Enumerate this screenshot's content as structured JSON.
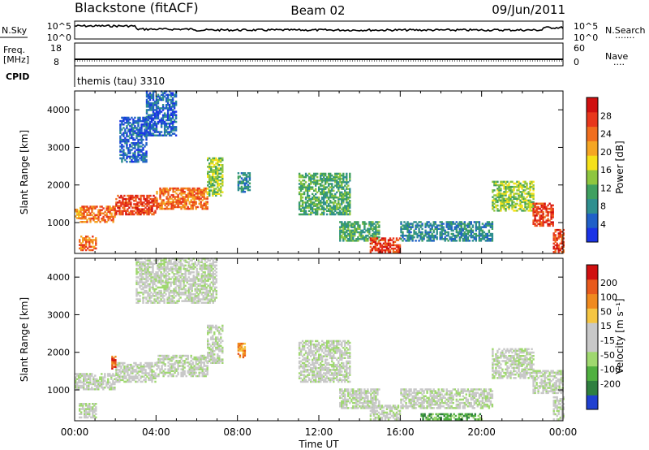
{
  "header": {
    "station": "Blackstone (fitACF)",
    "beam": "Beam 02",
    "date": "09/Jun/2011"
  },
  "noise_panel": {
    "left_label": "N.Sky",
    "right_label": "N.Search",
    "right_dots": ".......",
    "left_ticks": [
      "10^5",
      "10^0"
    ],
    "right_ticks": [
      "10^5",
      "10^0"
    ]
  },
  "freq_panel": {
    "left_label_1": "Freq.",
    "left_label_2": "[MHz]",
    "left_ticks": [
      "18",
      "8"
    ],
    "right_label": "Nave",
    "right_dots": "....",
    "right_ticks": [
      "60",
      "0"
    ]
  },
  "cpid": {
    "label": "CPID",
    "value": "themis (tau) 3310"
  },
  "colors": {
    "power_scale": [
      "#1a33e6",
      "#2060c8",
      "#2f8f8f",
      "#3fa060",
      "#8ec63f",
      "#f5e11a",
      "#f5a623",
      "#f06e1e",
      "#e8371c",
      "#d01010"
    ],
    "velocity_scale": [
      "#2040d0",
      "#2f7f3f",
      "#50b040",
      "#9fd86f",
      "#c8c8c8",
      "#c8c8c8",
      "#f5c542",
      "#f08a1e",
      "#e85a1c",
      "#d01010"
    ]
  },
  "chart_data": [
    {
      "type": "heatmap",
      "name": "power",
      "ylabel": "Slant Range [km]",
      "y_ticks": [
        "1000",
        "2000",
        "3000",
        "4000"
      ],
      "y_tick_values": [
        1000,
        2000,
        3000,
        4000
      ],
      "ylim": [
        180,
        4500
      ],
      "xlim": [
        0,
        24
      ],
      "colorbar_label": "Power [dB]",
      "colorbar_ticks": [
        "4",
        "8",
        "12",
        "16",
        "20",
        "24",
        "28"
      ],
      "colorbar_range": [
        0,
        32
      ],
      "bands": [
        {
          "t0": 0.0,
          "t1": 0.25,
          "r0": 1100,
          "r1": 1400,
          "lvl": 6
        },
        {
          "t0": 0.25,
          "t1": 2.0,
          "r0": 1000,
          "r1": 1450,
          "lvl": 7
        },
        {
          "t0": 2.0,
          "t1": 4.0,
          "r0": 1200,
          "r1": 1700,
          "lvl": 8
        },
        {
          "t0": 4.0,
          "t1": 6.5,
          "r0": 1350,
          "r1": 1900,
          "lvl": 7
        },
        {
          "t0": 6.5,
          "t1": 7.3,
          "r0": 1700,
          "r1": 2700,
          "lvl": 4
        },
        {
          "t0": 0.2,
          "t1": 1.0,
          "r0": 250,
          "r1": 650,
          "lvl": 7
        },
        {
          "t0": 2.2,
          "t1": 3.5,
          "r0": 2600,
          "r1": 3800,
          "lvl": 1
        },
        {
          "t0": 3.5,
          "t1": 5.0,
          "r0": 3300,
          "r1": 4500,
          "lvl": 1
        },
        {
          "t0": 8.0,
          "t1": 8.6,
          "r0": 1800,
          "r1": 2300,
          "lvl": 2
        },
        {
          "t0": 11.0,
          "t1": 13.5,
          "r0": 1200,
          "r1": 2300,
          "lvl": 3
        },
        {
          "t0": 13.0,
          "t1": 15.0,
          "r0": 500,
          "r1": 1000,
          "lvl": 3
        },
        {
          "t0": 14.5,
          "t1": 16.0,
          "r0": 200,
          "r1": 600,
          "lvl": 8
        },
        {
          "t0": 16.0,
          "t1": 20.5,
          "r0": 500,
          "r1": 1000,
          "lvl": 2
        },
        {
          "t0": 20.5,
          "t1": 22.5,
          "r0": 1300,
          "r1": 2100,
          "lvl": 4
        },
        {
          "t0": 22.5,
          "t1": 23.5,
          "r0": 900,
          "r1": 1500,
          "lvl": 8
        },
        {
          "t0": 23.5,
          "t1": 24.0,
          "r0": 200,
          "r1": 800,
          "lvl": 8
        }
      ]
    },
    {
      "type": "heatmap",
      "name": "velocity",
      "ylabel": "Slant Range [km]",
      "y_ticks": [
        "1000",
        "2000",
        "3000",
        "4000"
      ],
      "y_tick_values": [
        1000,
        2000,
        3000,
        4000
      ],
      "ylim": [
        180,
        4500
      ],
      "xlim": [
        0,
        24
      ],
      "colorbar_label": "Velocity [m s⁻¹]",
      "colorbar_ticks": [
        "200",
        "100",
        "50",
        "15",
        "-15",
        "-50",
        "-100",
        "-200"
      ],
      "colorbar_range": [
        -250,
        250
      ],
      "bands": [
        {
          "t0": 0.0,
          "t1": 2.0,
          "r0": 1000,
          "r1": 1450,
          "lvl": 4
        },
        {
          "t0": 2.0,
          "t1": 4.0,
          "r0": 1200,
          "r1": 1700,
          "lvl": 4
        },
        {
          "t0": 4.0,
          "t1": 6.5,
          "r0": 1350,
          "r1": 1900,
          "lvl": 4
        },
        {
          "t0": 6.5,
          "t1": 7.3,
          "r0": 1700,
          "r1": 2700,
          "lvl": 4
        },
        {
          "t0": 0.2,
          "t1": 1.0,
          "r0": 250,
          "r1": 650,
          "lvl": 4
        },
        {
          "t0": 1.8,
          "t1": 2.0,
          "r0": 1550,
          "r1": 1900,
          "lvl": 8
        },
        {
          "t0": 8.0,
          "t1": 8.4,
          "r0": 1850,
          "r1": 2250,
          "lvl": 7
        },
        {
          "t0": 11.0,
          "t1": 13.5,
          "r0": 1200,
          "r1": 2300,
          "lvl": 4
        },
        {
          "t0": 13.0,
          "t1": 15.0,
          "r0": 500,
          "r1": 1000,
          "lvl": 4
        },
        {
          "t0": 14.5,
          "t1": 16.0,
          "r0": 200,
          "r1": 600,
          "lvl": 4
        },
        {
          "t0": 16.0,
          "t1": 20.5,
          "r0": 500,
          "r1": 1000,
          "lvl": 4
        },
        {
          "t0": 20.5,
          "t1": 22.5,
          "r0": 1300,
          "r1": 2100,
          "lvl": 4
        },
        {
          "t0": 22.5,
          "t1": 24.0,
          "r0": 900,
          "r1": 1500,
          "lvl": 4
        },
        {
          "t0": 23.5,
          "t1": 24.0,
          "r0": 200,
          "r1": 800,
          "lvl": 4
        },
        {
          "t0": 3.0,
          "t1": 7.0,
          "r0": 3300,
          "r1": 4500,
          "lvl": 4
        },
        {
          "t0": 17.0,
          "t1": 20.0,
          "r0": 200,
          "r1": 350,
          "lvl": 2
        }
      ]
    }
  ],
  "xaxis": {
    "label": "Time UT",
    "ticks": [
      "00:00",
      "04:00",
      "08:00",
      "12:00",
      "16:00",
      "20:00",
      "00:00"
    ],
    "tick_values": [
      0,
      4,
      8,
      12,
      16,
      20,
      24
    ]
  }
}
